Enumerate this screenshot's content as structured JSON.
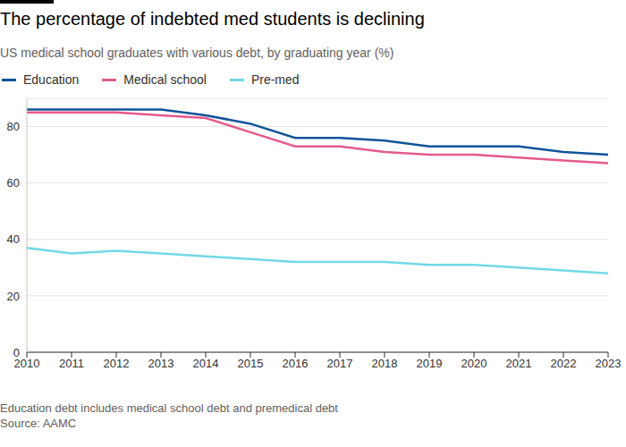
{
  "chart_data": {
    "type": "line",
    "title": "The percentage of indebted med students is declining",
    "subtitle": "US medical school graduates with various debt, by graduating year (%)",
    "x": [
      2010,
      2011,
      2012,
      2013,
      2014,
      2015,
      2016,
      2017,
      2018,
      2019,
      2020,
      2021,
      2022,
      2023
    ],
    "series": [
      {
        "name": "Education",
        "color": "#0f5499",
        "values": [
          86,
          86,
          86,
          86,
          84,
          81,
          76,
          76,
          75,
          73,
          73,
          73,
          71,
          70
        ]
      },
      {
        "name": "Medical school",
        "color": "#e65a8c",
        "values": [
          85,
          85,
          85,
          84,
          83,
          78,
          73,
          73,
          71,
          70,
          70,
          69,
          68,
          67
        ]
      },
      {
        "name": "Pre-med",
        "color": "#72d8e6",
        "values": [
          37,
          35,
          36,
          35,
          34,
          33,
          32,
          32,
          32,
          31,
          31,
          30,
          29,
          28
        ]
      }
    ],
    "xlim": [
      2010,
      2023
    ],
    "xticks": [
      2010,
      2011,
      2012,
      2013,
      2014,
      2015,
      2016,
      2017,
      2018,
      2019,
      2020,
      2021,
      2022,
      2023
    ],
    "ylim": [
      0,
      90
    ],
    "yticks": [
      0,
      20,
      40,
      60,
      80
    ],
    "grid": true,
    "legend": "top-left",
    "footnote": "Education debt includes medical school debt and premedical debt",
    "source": "Source: AAMC"
  }
}
